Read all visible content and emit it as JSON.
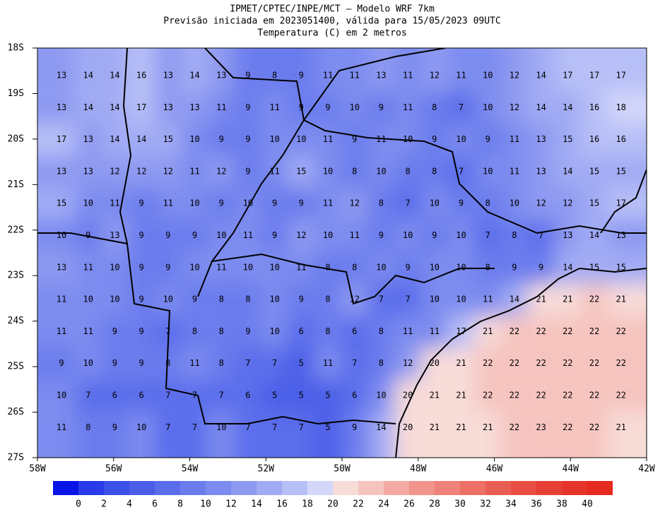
{
  "header": {
    "title_lines": [
      "IPMET/CPTEC/INPE/MCT – Modelo WRF 7km",
      "Previsão iniciada em 2023051400, válida para 15/05/2023 09UTC",
      "Temperatura (C) em 2 metros"
    ]
  },
  "map": {
    "lat_labels": [
      "18S",
      "19S",
      "20S",
      "21S",
      "22S",
      "23S",
      "24S",
      "25S",
      "26S",
      "27S"
    ],
    "lon_labels": [
      "58W",
      "56W",
      "54W",
      "52W",
      "50W",
      "48W",
      "46W",
      "44W",
      "42W"
    ],
    "values": [
      [
        13,
        14,
        14,
        16,
        13,
        14,
        13,
        9,
        8,
        9,
        11,
        11,
        13,
        11,
        12,
        11,
        10,
        12,
        14,
        17,
        17,
        17
      ],
      [
        13,
        14,
        14,
        17,
        13,
        13,
        11,
        9,
        11,
        9,
        9,
        10,
        9,
        11,
        8,
        7,
        10,
        12,
        14,
        14,
        16,
        18
      ],
      [
        17,
        13,
        14,
        14,
        15,
        10,
        9,
        9,
        10,
        10,
        11,
        9,
        11,
        10,
        9,
        10,
        9,
        11,
        13,
        15,
        16,
        16
      ],
      [
        13,
        13,
        12,
        12,
        12,
        11,
        12,
        9,
        11,
        15,
        10,
        8,
        10,
        8,
        8,
        7,
        10,
        11,
        13,
        14,
        15,
        15
      ],
      [
        15,
        10,
        11,
        9,
        11,
        10,
        9,
        10,
        9,
        9,
        11,
        12,
        8,
        7,
        10,
        9,
        8,
        10,
        12,
        12,
        15,
        17
      ],
      [
        10,
        9,
        13,
        9,
        9,
        9,
        10,
        11,
        9,
        12,
        10,
        11,
        9,
        10,
        9,
        10,
        7,
        8,
        7,
        13,
        14,
        13
      ],
      [
        13,
        11,
        10,
        9,
        9,
        10,
        11,
        10,
        10,
        11,
        8,
        8,
        10,
        9,
        10,
        10,
        8,
        9,
        9,
        14,
        15,
        15
      ],
      [
        11,
        10,
        10,
        9,
        10,
        9,
        8,
        8,
        10,
        9,
        8,
        12,
        7,
        7,
        10,
        10,
        11,
        14,
        21,
        21,
        22,
        21
      ],
      [
        11,
        11,
        9,
        9,
        7,
        8,
        8,
        9,
        10,
        6,
        8,
        6,
        8,
        11,
        11,
        17,
        21,
        22,
        22,
        22,
        22,
        22
      ],
      [
        9,
        10,
        9,
        9,
        8,
        11,
        8,
        7,
        7,
        5,
        11,
        7,
        8,
        12,
        20,
        21,
        22,
        22,
        22,
        22,
        22,
        22
      ],
      [
        10,
        7,
        6,
        6,
        7,
        7,
        7,
        6,
        5,
        5,
        5,
        6,
        10,
        20,
        21,
        21,
        22,
        22,
        22,
        22,
        22,
        22
      ],
      [
        11,
        8,
        9,
        10,
        7,
        7,
        10,
        7,
        7,
        7,
        5,
        9,
        14,
        20,
        21,
        21,
        21,
        22,
        23,
        22,
        22,
        21
      ]
    ]
  },
  "colorbar": {
    "labels": [
      0,
      2,
      4,
      6,
      8,
      10,
      12,
      14,
      16,
      18,
      20,
      22,
      24,
      26,
      28,
      30,
      32,
      34,
      36,
      38,
      40
    ],
    "colors": [
      "#0a14e6",
      "#2a3ae8",
      "#3c4fe6",
      "#4b5ee8",
      "#5a6deb",
      "#6b7ced",
      "#7c8bef",
      "#8e9af1",
      "#a1abf4",
      "#b7bff7",
      "#d3d7fa",
      "#f8dcd8",
      "#f6c4bf",
      "#f3aaa3",
      "#f0948c",
      "#ee8179",
      "#ec7066",
      "#e95e54",
      "#e84e44",
      "#e64036",
      "#e5342a",
      "#e52a20"
    ]
  }
}
